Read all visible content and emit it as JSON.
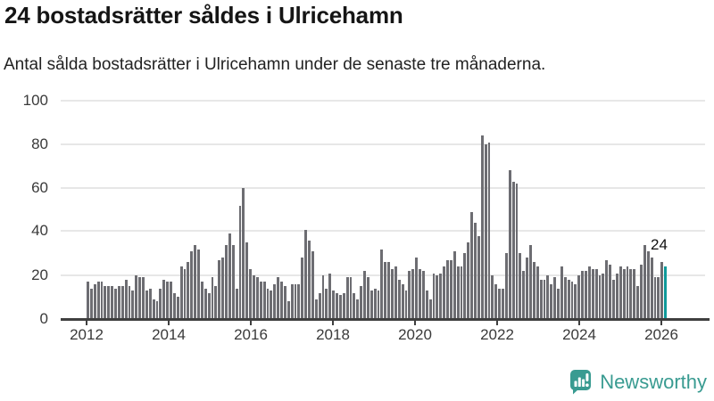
{
  "header": {
    "title": "24 bostadsrätter såldes i Ulricehamn",
    "subtitle": "Antal sålda bostadsrätter i Ulricehamn under de senaste tre månaderna."
  },
  "chart_data": {
    "type": "bar",
    "title": "24 bostadsrätter såldes i Ulricehamn",
    "subtitle": "Antal sålda bostadsrätter i Ulricehamn under de senaste tre månaderna.",
    "granularity": "month",
    "x_tick_labels": [
      "2012",
      "2014",
      "2016",
      "2018",
      "2020",
      "2022",
      "2024",
      "2026"
    ],
    "y_ticks": [
      0,
      20,
      40,
      60,
      80,
      100
    ],
    "ylim": [
      0,
      100
    ],
    "grid": true,
    "legend": false,
    "bar_color": "#6d6d72",
    "values": [
      17,
      14,
      16,
      17,
      17,
      15,
      15,
      15,
      14,
      15,
      15,
      18,
      15,
      13,
      20,
      19,
      19,
      13,
      14,
      9,
      8,
      14,
      18,
      17,
      17,
      12,
      10,
      24,
      23,
      26,
      31,
      34,
      32,
      17,
      14,
      12,
      19,
      15,
      27,
      28,
      34,
      39,
      34,
      14,
      52,
      60,
      35,
      23,
      20,
      19,
      17,
      17,
      14,
      13,
      16,
      19,
      17,
      15,
      8,
      16,
      16,
      16,
      28,
      41,
      36,
      31,
      9,
      12,
      20,
      14,
      21,
      13,
      12,
      11,
      12,
      19,
      19,
      12,
      9,
      15,
      22,
      19,
      13,
      14,
      13,
      32,
      26,
      26,
      23,
      24,
      18,
      16,
      13,
      22,
      23,
      28,
      23,
      22,
      13,
      9,
      21,
      20,
      21,
      24,
      27,
      27,
      31,
      24,
      24,
      30,
      35,
      49,
      44,
      38,
      84,
      80,
      81,
      20,
      16,
      14,
      14,
      30,
      68,
      63,
      62,
      30,
      22,
      28,
      34,
      26,
      24,
      18,
      18,
      20,
      16,
      19,
      14,
      24,
      19,
      18,
      17,
      16,
      20,
      22,
      22,
      24,
      23,
      23,
      20,
      21,
      27,
      25,
      18,
      21,
      24,
      23,
      24,
      23,
      23,
      15,
      25,
      34,
      31,
      28,
      19,
      19,
      26,
      24
    ],
    "highlight": {
      "index": 167,
      "value": 24,
      "label": "24",
      "color": "#0f9a9a"
    }
  },
  "footer": {
    "brand": "Newsworthy",
    "logo_color": "#399b91"
  }
}
